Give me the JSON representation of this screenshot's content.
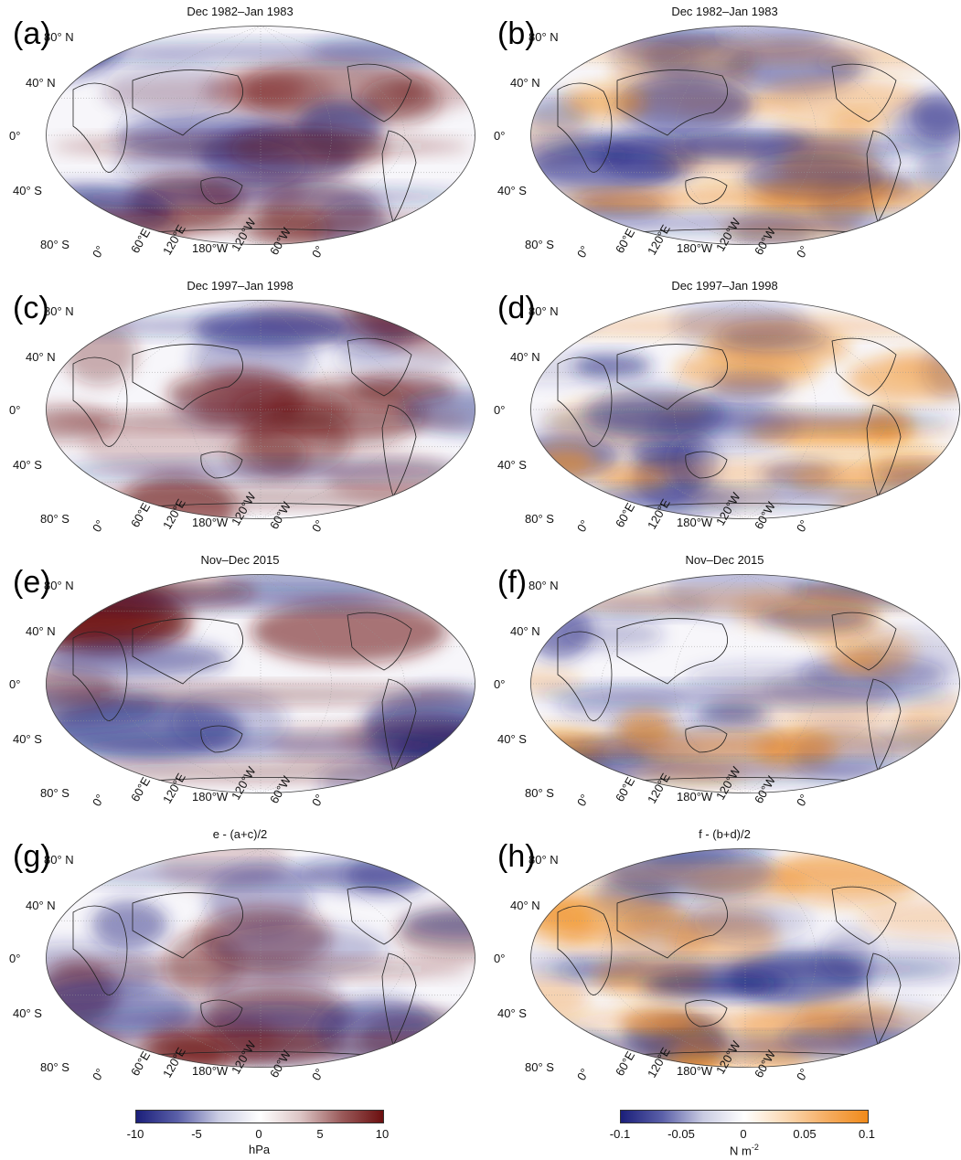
{
  "panels": [
    {
      "label": "(a)",
      "title": "Dec 1982–Jan 1983",
      "field": "slp"
    },
    {
      "label": "(b)",
      "title": "Dec 1982–Jan 1983",
      "field": "stress"
    },
    {
      "label": "(c)",
      "title": "Dec 1997–Jan 1998",
      "field": "slp"
    },
    {
      "label": "(d)",
      "title": "Dec 1997–Jan 1998",
      "field": "stress"
    },
    {
      "label": "(e)",
      "title": "Nov–Dec 2015",
      "field": "slp"
    },
    {
      "label": "(f)",
      "title": "Nov–Dec 2015",
      "field": "stress"
    },
    {
      "label": "(g)",
      "title": "e - (a+c)/2",
      "field": "slp"
    },
    {
      "label": "(h)",
      "title": "f - (b+d)/2",
      "field": "stress"
    }
  ],
  "lat_labels": [
    "80° N",
    "40° N",
    "0°",
    "40° S",
    "80° S"
  ],
  "lon_labels": [
    "0°",
    "60°E",
    "120°E",
    "180°W",
    "120°W",
    "60°W",
    "0°"
  ],
  "colorbars": [
    {
      "ticks": [
        "-10",
        "-5",
        "0",
        "5",
        "10"
      ],
      "unit": "hPa",
      "colors": [
        "#1b1f7a",
        "#ffffff",
        "#6b0f0f"
      ]
    },
    {
      "ticks": [
        "-0.1",
        "-0.05",
        "0",
        "0.05",
        "0.1"
      ],
      "unit": "N m",
      "unit_sup": "-2",
      "colors": [
        "#1b1f7a",
        "#ffffff",
        "#f08a1a"
      ]
    }
  ]
}
